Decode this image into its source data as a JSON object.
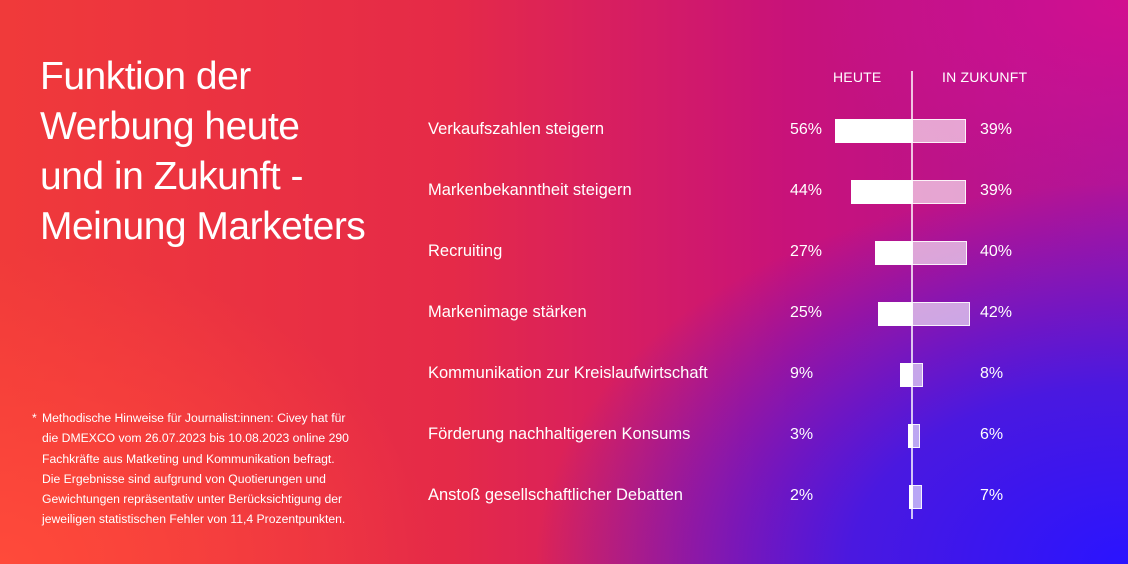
{
  "title_lines": [
    "Funktion der",
    "Werbung heute",
    "und in Zukunft -",
    "Meinung Marketers"
  ],
  "footnote": {
    "star": "*",
    "lines": [
      "Methodische Hinweise für Journalist:innen: Civey hat für",
      "die DMEXCO vom 26.07.2023 bis 10.08.2023 online 290",
      "Fachkräfte aus Matketing und Kommunikation befragt.",
      "Die Ergebnisse sind aufgrund von Quotierungen und",
      "Gewichtungen repräsentativ unter Berücksichtigung der",
      "jeweiligen statistischen Fehler von 11,4 Prozentpunkten."
    ]
  },
  "colors": {
    "background_left": "#f03a3a",
    "background_right": "#2a14ff",
    "bar_today": "#ffffff",
    "bar_future": "#ffffffa0"
  },
  "chart_data": {
    "type": "bar",
    "orientation": "horizontal-diverging",
    "title": "Funktion der Werbung heute und in Zukunft - Meinung Marketers",
    "categories": [
      "Verkaufszahlen steigern",
      "Markenbekanntheit steigern",
      "Recruiting",
      "Markenimage stärken",
      "Kommunikation zur Kreislaufwirtschaft",
      "Förderung nachhaltigeren Konsums",
      "Anstoß gesellschaftlicher Debatten"
    ],
    "series": [
      {
        "name": "HEUTE",
        "values": [
          56,
          44,
          27,
          25,
          9,
          3,
          2
        ],
        "labels": [
          "56%",
          "44%",
          "27%",
          "25%",
          "9%",
          "3%",
          "2%"
        ]
      },
      {
        "name": "IN ZUKUNFT",
        "values": [
          39,
          39,
          40,
          42,
          8,
          6,
          7
        ],
        "labels": [
          "39%",
          "39%",
          "40%",
          "42%",
          "8%",
          "6%",
          "7%"
        ]
      }
    ],
    "unit": "%",
    "grid": false,
    "legend": "top"
  }
}
